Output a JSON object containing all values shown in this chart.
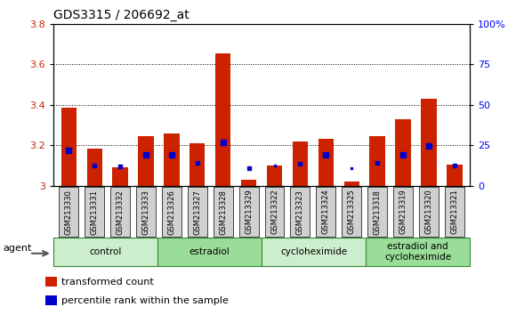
{
  "title": "GDS3315 / 206692_at",
  "samples": [
    "GSM213330",
    "GSM213331",
    "GSM213332",
    "GSM213333",
    "GSM213326",
    "GSM213327",
    "GSM213328",
    "GSM213329",
    "GSM213322",
    "GSM213323",
    "GSM213324",
    "GSM213325",
    "GSM213318",
    "GSM213319",
    "GSM213320",
    "GSM213321"
  ],
  "red_values": [
    3.385,
    3.185,
    3.09,
    3.245,
    3.26,
    3.21,
    3.655,
    3.03,
    3.1,
    3.22,
    3.23,
    3.02,
    3.245,
    3.33,
    3.43,
    3.105
  ],
  "blue_values": [
    3.175,
    3.1,
    3.095,
    3.155,
    3.155,
    3.115,
    3.215,
    3.085,
    3.1,
    3.11,
    3.155,
    3.085,
    3.115,
    3.155,
    3.195,
    3.1
  ],
  "blue_sizes": [
    4.5,
    3.2,
    2.8,
    3.9,
    3.9,
    3.5,
    4.7,
    2.2,
    2.0,
    3.2,
    3.9,
    2.0,
    3.5,
    3.9,
    4.5,
    2.8
  ],
  "groups": [
    {
      "label": "control",
      "start": 0,
      "end": 4,
      "color": "#cceecc"
    },
    {
      "label": "estradiol",
      "start": 4,
      "end": 8,
      "color": "#99dd99"
    },
    {
      "label": "cycloheximide",
      "start": 8,
      "end": 12,
      "color": "#cceecc"
    },
    {
      "label": "estradiol and\ncycloheximide",
      "start": 12,
      "end": 16,
      "color": "#99dd99"
    }
  ],
  "ylim_left": [
    3.0,
    3.8
  ],
  "ylim_right": [
    0,
    100
  ],
  "yticks_left": [
    3.0,
    3.2,
    3.4,
    3.6,
    3.8
  ],
  "ytick_labels_left": [
    "3",
    "3.2",
    "3.4",
    "3.6",
    "3.8"
  ],
  "yticks_right": [
    0,
    25,
    50,
    75,
    100
  ],
  "ytick_labels_right": [
    "0",
    "25",
    "50",
    "75",
    "100%"
  ],
  "grid_lines": [
    3.2,
    3.4,
    3.6
  ],
  "bar_color": "#cc2200",
  "dot_color": "#0000cc",
  "bar_width": 0.6,
  "plot_bg": "#ffffff",
  "legend_items": [
    {
      "color": "#cc2200",
      "label": "transformed count"
    },
    {
      "color": "#0000cc",
      "label": "percentile rank within the sample"
    }
  ]
}
